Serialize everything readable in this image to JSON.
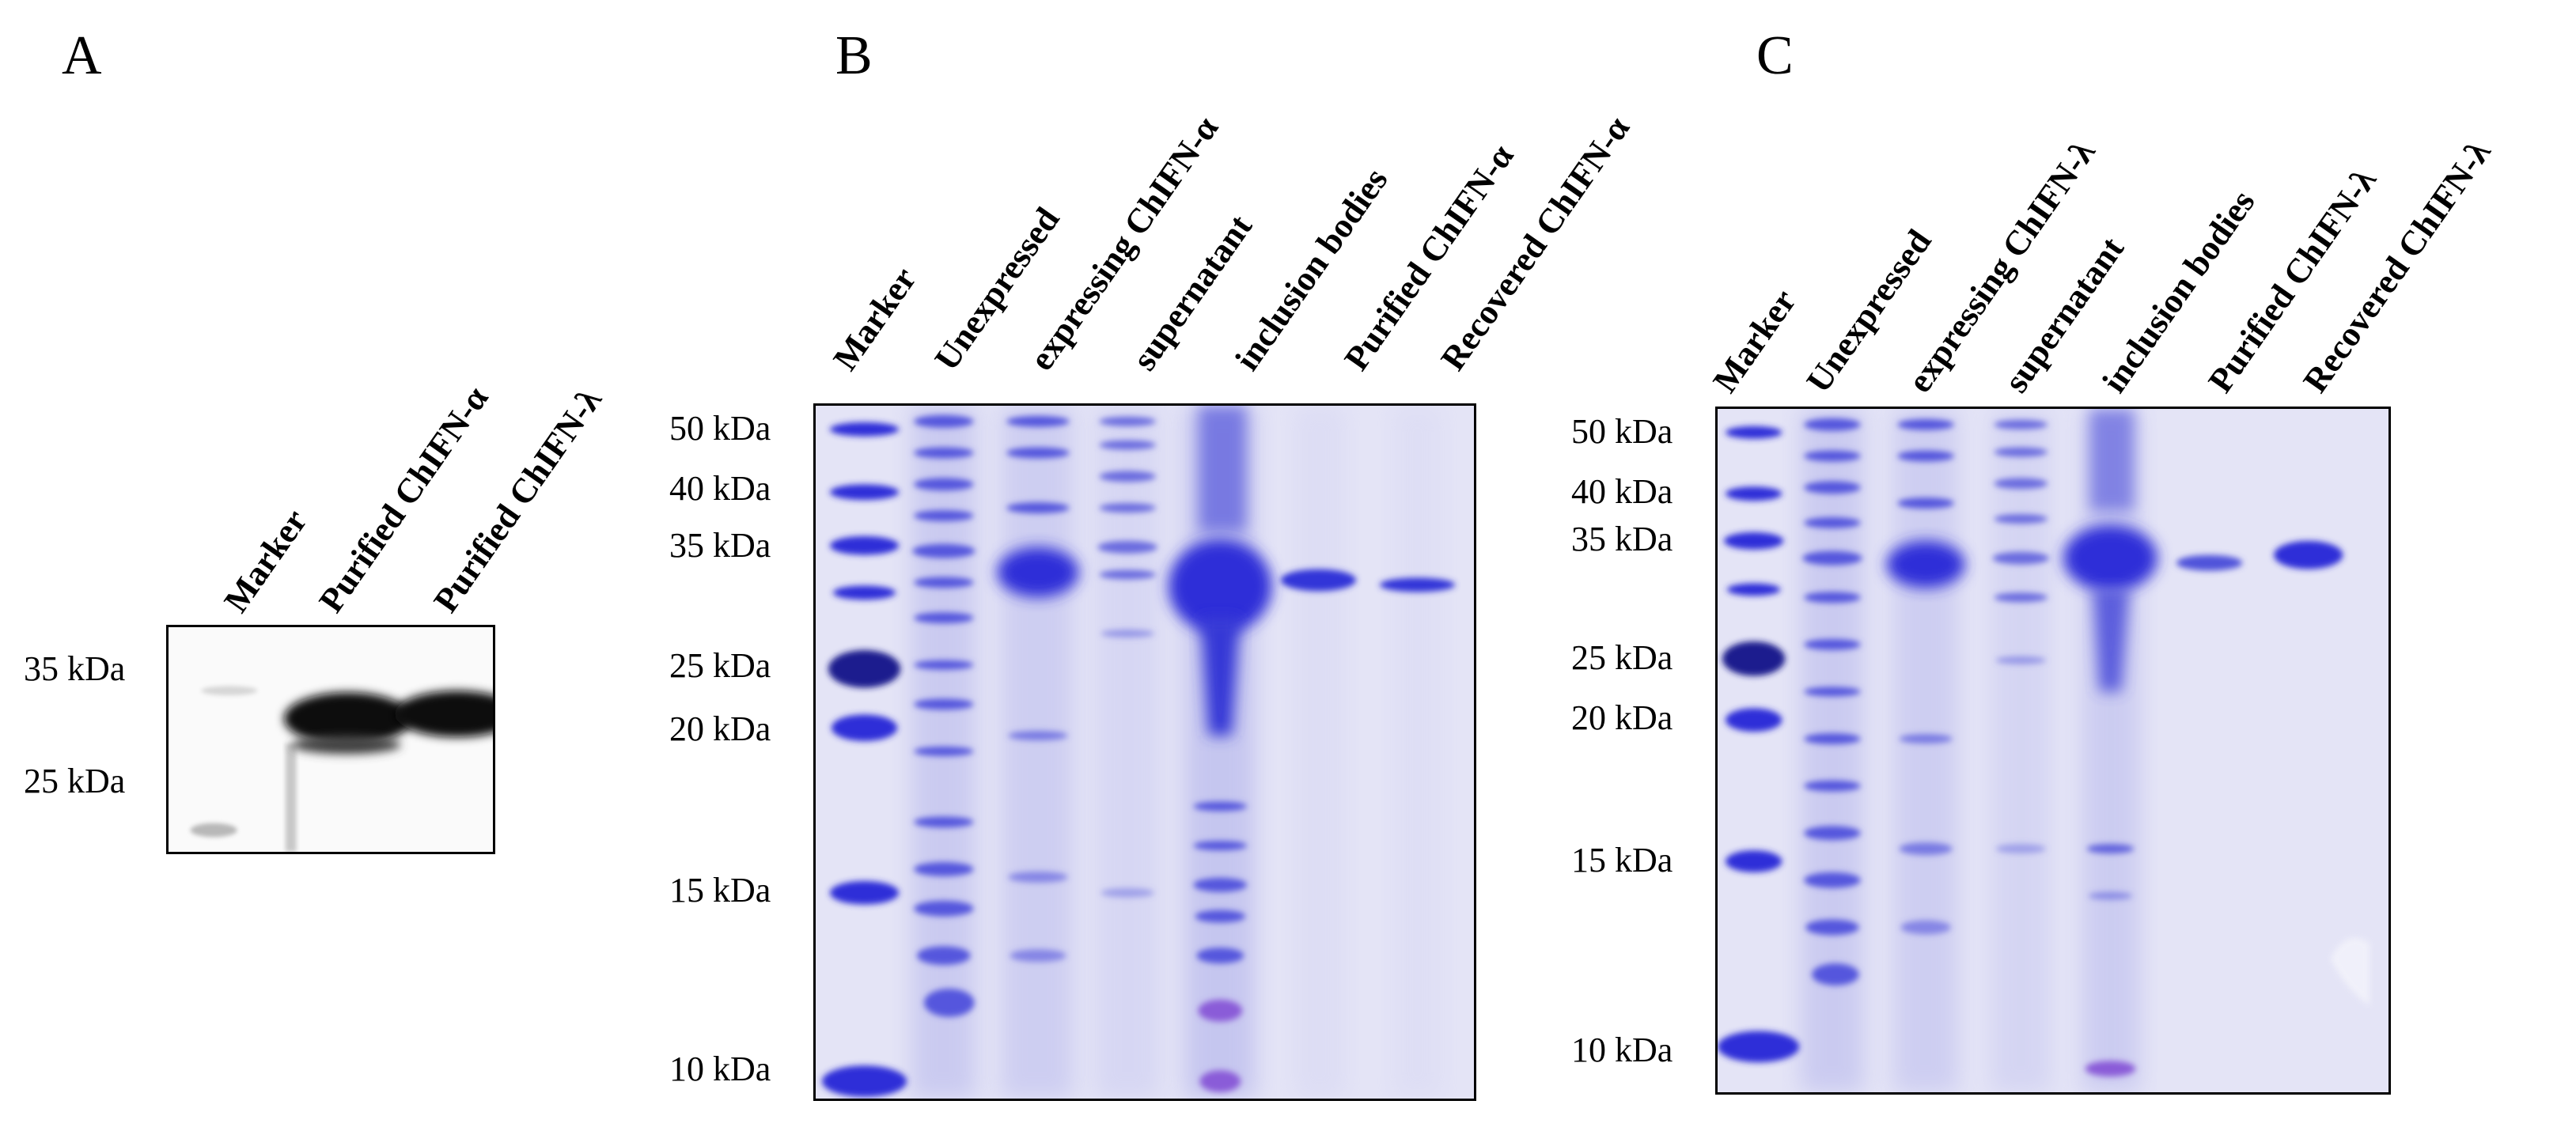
{
  "panels": [
    {
      "letter": "A",
      "kind": "western-blot",
      "lanes": [
        "Marker",
        "Purified ChIFN-α",
        "Purified ChIFN-λ"
      ],
      "markers": [
        "35 kDa",
        "25 kDa"
      ]
    },
    {
      "letter": "B",
      "kind": "sds-page",
      "lanes": [
        "Marker",
        "Unexpressed",
        "expressing ChIFN-α",
        "supernatant",
        "inclusion bodies",
        "Purified ChIFN-α",
        "Recovered ChIFN-α"
      ],
      "markers": [
        "50 kDa",
        "40 kDa",
        "35 kDa",
        "25 kDa",
        "20 kDa",
        "15 kDa",
        "10 kDa"
      ]
    },
    {
      "letter": "C",
      "kind": "sds-page",
      "lanes": [
        "Marker",
        "Unexpressed",
        "expressing ChIFN-λ",
        "supernatant",
        "inclusion bodies",
        "Purified ChIFN-λ",
        "Recovered ChIFN-λ"
      ],
      "markers": [
        "50 kDa",
        "40 kDa",
        "35 kDa",
        "25 kDa",
        "20 kDa",
        "15 kDa",
        "10 kDa"
      ]
    }
  ],
  "colors": {
    "coomassie_background": "#e4e4f6",
    "coomassie_band": "#2d2fd8",
    "blot_background": "#fafafa",
    "blot_band": "#0a0a0a"
  }
}
